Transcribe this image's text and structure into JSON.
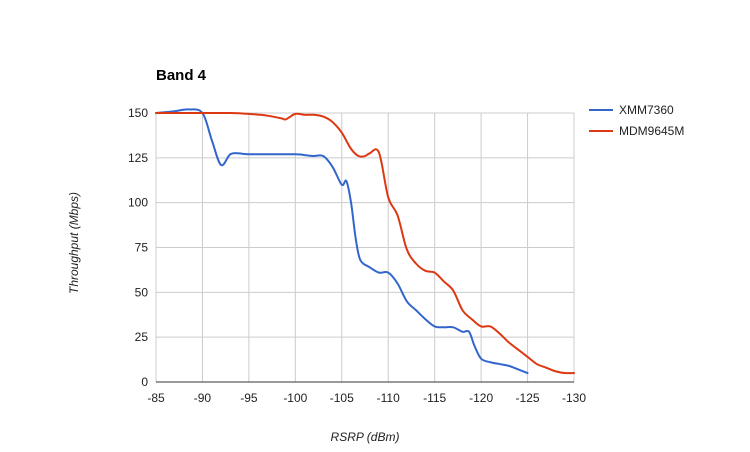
{
  "chart_data": {
    "type": "line",
    "title": "Band 4",
    "xlabel": "RSRP (dBm)",
    "ylabel": "Throughput (Mbps)",
    "xlim": [
      -85,
      -130
    ],
    "ylim": [
      0,
      150
    ],
    "x_ticks": [
      -85,
      -90,
      -95,
      -100,
      -105,
      -110,
      -115,
      -120,
      -125,
      -130
    ],
    "y_ticks": [
      0,
      25,
      50,
      75,
      100,
      125,
      150
    ],
    "grid": true,
    "legend_position": "right",
    "series": [
      {
        "name": "XMM7360",
        "color": "#3366cc",
        "points": [
          [
            -85,
            150
          ],
          [
            -87,
            151
          ],
          [
            -88.5,
            152
          ],
          [
            -90,
            150
          ],
          [
            -91,
            135
          ],
          [
            -92,
            121
          ],
          [
            -93,
            127
          ],
          [
            -94,
            127.5
          ],
          [
            -95,
            127
          ],
          [
            -100,
            127
          ],
          [
            -101,
            126.5
          ],
          [
            -102,
            126
          ],
          [
            -103,
            126
          ],
          [
            -104,
            120
          ],
          [
            -105,
            110
          ],
          [
            -105.5,
            112
          ],
          [
            -106,
            100
          ],
          [
            -106.5,
            80
          ],
          [
            -107,
            68
          ],
          [
            -108,
            64
          ],
          [
            -109,
            61
          ],
          [
            -110,
            61
          ],
          [
            -111,
            55
          ],
          [
            -112,
            45
          ],
          [
            -113,
            40
          ],
          [
            -114,
            35
          ],
          [
            -115,
            31
          ],
          [
            -116,
            30.5
          ],
          [
            -117,
            30.5
          ],
          [
            -118,
            28
          ],
          [
            -118.7,
            28
          ],
          [
            -119.3,
            20
          ],
          [
            -120,
            13
          ],
          [
            -121,
            11
          ],
          [
            -122,
            10
          ],
          [
            -123,
            9
          ],
          [
            -124,
            7
          ],
          [
            -125,
            5
          ]
        ]
      },
      {
        "name": "MDM9645M",
        "color": "#dc3912",
        "points": [
          [
            -85,
            150
          ],
          [
            -90,
            150
          ],
          [
            -93,
            150
          ],
          [
            -95,
            149.5
          ],
          [
            -97,
            148.5
          ],
          [
            -98.5,
            147
          ],
          [
            -99,
            146.5
          ],
          [
            -100,
            149.5
          ],
          [
            -101,
            149
          ],
          [
            -102,
            149
          ],
          [
            -103,
            148
          ],
          [
            -104,
            145
          ],
          [
            -105,
            139
          ],
          [
            -106,
            130
          ],
          [
            -106.8,
            126
          ],
          [
            -107.5,
            126
          ],
          [
            -108,
            127.5
          ],
          [
            -109,
            128
          ],
          [
            -110,
            103
          ],
          [
            -111,
            93
          ],
          [
            -112,
            74
          ],
          [
            -113,
            66
          ],
          [
            -114,
            62
          ],
          [
            -115,
            61
          ],
          [
            -116,
            56
          ],
          [
            -117,
            51
          ],
          [
            -118,
            40
          ],
          [
            -119,
            35
          ],
          [
            -120,
            31
          ],
          [
            -121,
            31
          ],
          [
            -122,
            27
          ],
          [
            -123,
            22
          ],
          [
            -124,
            18
          ],
          [
            -125,
            14
          ],
          [
            -126,
            10
          ],
          [
            -127,
            8
          ],
          [
            -128,
            6
          ],
          [
            -129,
            5
          ],
          [
            -130,
            5
          ]
        ]
      }
    ]
  }
}
